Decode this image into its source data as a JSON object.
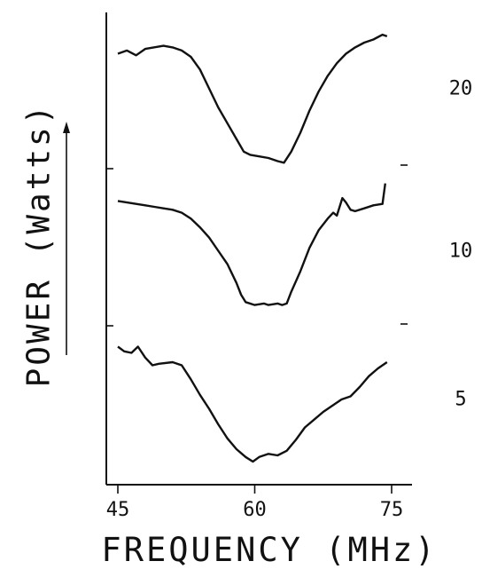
{
  "chart_data": {
    "type": "line",
    "title": "",
    "xlabel": "FREQUENCY (MHz)",
    "ylabel": "POWER (Watts)",
    "xlim": [
      45,
      75
    ],
    "x_ticks": [
      "45",
      "60",
      "75"
    ],
    "grid": false,
    "legend": "none",
    "series": [
      {
        "name": "20",
        "points": [
          [
            45,
            0.84
          ],
          [
            46,
            0.86
          ],
          [
            47,
            0.83
          ],
          [
            48,
            0.87
          ],
          [
            50,
            0.89
          ],
          [
            51,
            0.88
          ],
          [
            52,
            0.86
          ],
          [
            53,
            0.82
          ],
          [
            54,
            0.74
          ],
          [
            55,
            0.62
          ],
          [
            56,
            0.5
          ],
          [
            57,
            0.4
          ],
          [
            58,
            0.3
          ],
          [
            58.8,
            0.22
          ],
          [
            59.5,
            0.2
          ],
          [
            60.5,
            0.19
          ],
          [
            61.5,
            0.18
          ],
          [
            62.5,
            0.16
          ],
          [
            63.2,
            0.15
          ],
          [
            64,
            0.22
          ],
          [
            65,
            0.34
          ],
          [
            66,
            0.48
          ],
          [
            67,
            0.6
          ],
          [
            68,
            0.7
          ],
          [
            69,
            0.78
          ],
          [
            70,
            0.84
          ],
          [
            71,
            0.88
          ],
          [
            72,
            0.91
          ],
          [
            73,
            0.93
          ],
          [
            74,
            0.96
          ],
          [
            74.5,
            0.95
          ]
        ]
      },
      {
        "name": "10",
        "points": [
          [
            45,
            0.84
          ],
          [
            46,
            0.83
          ],
          [
            47,
            0.82
          ],
          [
            48,
            0.81
          ],
          [
            49,
            0.8
          ],
          [
            50,
            0.79
          ],
          [
            51,
            0.78
          ],
          [
            52,
            0.76
          ],
          [
            53,
            0.72
          ],
          [
            54,
            0.66
          ],
          [
            55,
            0.59
          ],
          [
            56,
            0.5
          ],
          [
            57,
            0.41
          ],
          [
            58,
            0.28
          ],
          [
            58.5,
            0.2
          ],
          [
            59,
            0.15
          ],
          [
            60,
            0.13
          ],
          [
            61,
            0.14
          ],
          [
            61.5,
            0.13
          ],
          [
            62.5,
            0.14
          ],
          [
            63,
            0.13
          ],
          [
            63.5,
            0.14
          ],
          [
            64,
            0.22
          ],
          [
            65,
            0.36
          ],
          [
            66,
            0.52
          ],
          [
            67,
            0.64
          ],
          [
            68,
            0.72
          ],
          [
            68.6,
            0.76
          ],
          [
            69,
            0.74
          ],
          [
            69.6,
            0.86
          ],
          [
            70,
            0.83
          ],
          [
            70.5,
            0.78
          ],
          [
            71,
            0.77
          ],
          [
            72,
            0.79
          ],
          [
            73,
            0.81
          ],
          [
            74,
            0.82
          ],
          [
            74.3,
            0.96
          ]
        ]
      },
      {
        "name": "5",
        "points": [
          [
            45,
            0.74
          ],
          [
            45.7,
            0.71
          ],
          [
            46.5,
            0.7
          ],
          [
            47.2,
            0.74
          ],
          [
            48,
            0.67
          ],
          [
            48.8,
            0.62
          ],
          [
            49.5,
            0.63
          ],
          [
            51,
            0.64
          ],
          [
            52,
            0.62
          ],
          [
            53,
            0.53
          ],
          [
            54,
            0.43
          ],
          [
            55,
            0.34
          ],
          [
            56,
            0.24
          ],
          [
            57,
            0.15
          ],
          [
            58,
            0.08
          ],
          [
            59,
            0.03
          ],
          [
            59.8,
            0.0
          ],
          [
            60.5,
            0.03
          ],
          [
            61.5,
            0.05
          ],
          [
            62.5,
            0.04
          ],
          [
            63.5,
            0.07
          ],
          [
            64.5,
            0.14
          ],
          [
            65.5,
            0.22
          ],
          [
            66.5,
            0.27
          ],
          [
            67.5,
            0.32
          ],
          [
            68.5,
            0.36
          ],
          [
            69.5,
            0.4
          ],
          [
            70.5,
            0.42
          ],
          [
            71.5,
            0.48
          ],
          [
            72.5,
            0.55
          ],
          [
            73.5,
            0.6
          ],
          [
            74.5,
            0.64
          ]
        ]
      }
    ]
  }
}
